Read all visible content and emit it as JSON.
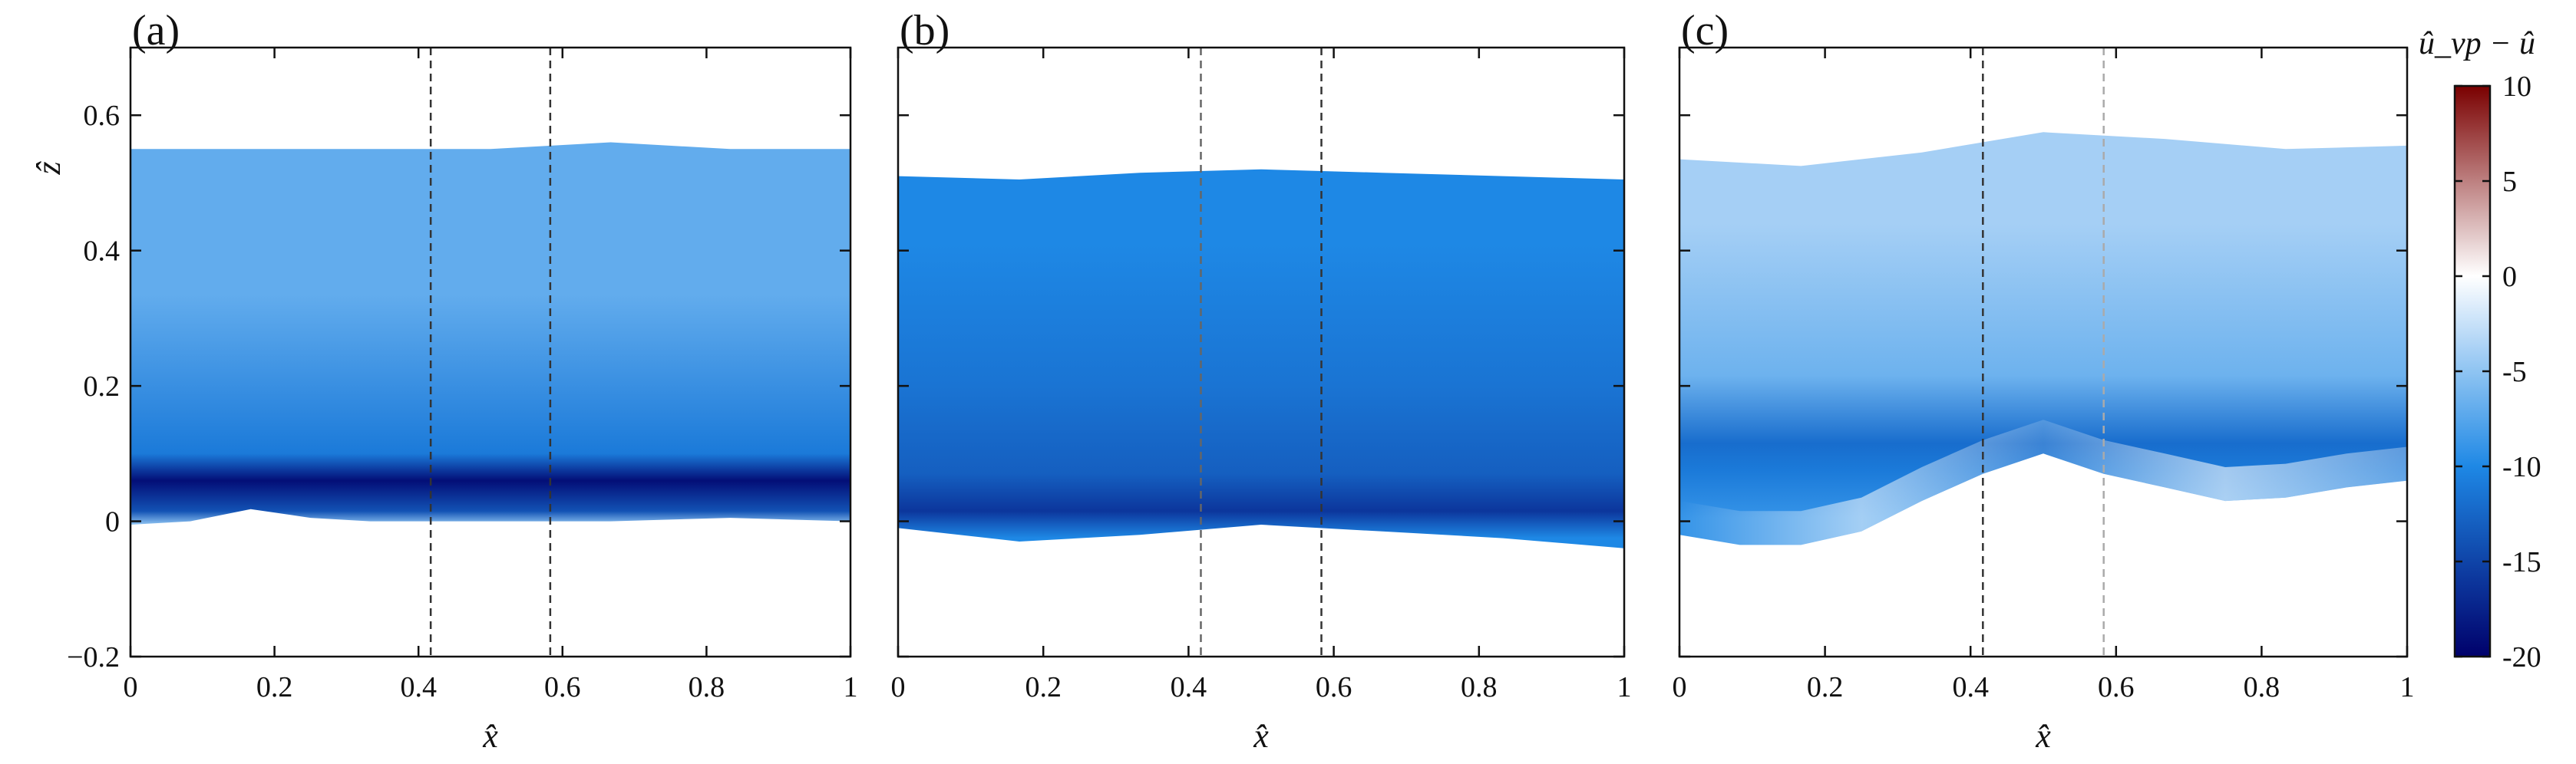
{
  "chart_data": {
    "type": "heatmap",
    "xlabel": "x̂",
    "ylabel": "ẑ",
    "xlim": [
      0,
      1
    ],
    "ylim": [
      -0.2,
      0.7
    ],
    "xticks": [
      "0",
      "0.2",
      "0.4",
      "0.6",
      "0.8",
      "1"
    ],
    "yticks": [
      "−0.2",
      "0",
      "0.2",
      "0.4",
      "0.6"
    ],
    "colorbar": {
      "label": "û_vp − û",
      "range": [
        -20,
        10
      ],
      "ticks": [
        "10",
        "5",
        "0",
        "-5",
        "-10",
        "-15",
        "-20"
      ],
      "colors": {
        "min": "#00006b",
        "mid": "#ffffff",
        "max": "#7a0000",
        "blue": "#1e88e5"
      }
    },
    "panels": [
      {
        "label": "(a)",
        "dashed_x": [
          0.417,
          0.583
        ],
        "dashed_colors": [
          "#333333",
          "#333333"
        ],
        "top": [
          [
            0,
            0.55
          ],
          [
            0.167,
            0.55
          ],
          [
            0.333,
            0.55
          ],
          [
            0.5,
            0.55
          ],
          [
            0.667,
            0.56
          ],
          [
            0.833,
            0.55
          ],
          [
            1,
            0.55
          ]
        ],
        "bottom": [
          [
            0,
            -0.005
          ],
          [
            0.083,
            0.0
          ],
          [
            0.167,
            0.018
          ],
          [
            0.25,
            0.005
          ],
          [
            0.333,
            0.0
          ],
          [
            0.5,
            0.0
          ],
          [
            0.667,
            0.0
          ],
          [
            0.833,
            0.005
          ],
          [
            1,
            0.0
          ]
        ],
        "bands": [
          {
            "z": [
              -0.01,
              0.0
            ],
            "value": -5
          },
          {
            "z": [
              0.0,
              0.03
            ],
            "value": -14
          },
          {
            "z": [
              0.03,
              0.09
            ],
            "value": -19
          },
          {
            "z": [
              0.09,
              0.11
            ],
            "value": -11
          },
          {
            "z": [
              0.11,
              0.56
            ],
            "value": -7
          }
        ]
      },
      {
        "label": "(b)",
        "dashed_x": [
          0.417,
          0.583
        ],
        "dashed_colors": [
          "#666666",
          "#333333"
        ],
        "top": [
          [
            0,
            0.51
          ],
          [
            0.167,
            0.505
          ],
          [
            0.333,
            0.515
          ],
          [
            0.5,
            0.52
          ],
          [
            0.667,
            0.515
          ],
          [
            0.833,
            0.51
          ],
          [
            1,
            0.505
          ]
        ],
        "bottom": [
          [
            0,
            -0.01
          ],
          [
            0.167,
            -0.03
          ],
          [
            0.333,
            -0.02
          ],
          [
            0.5,
            -0.005
          ],
          [
            0.667,
            -0.015
          ],
          [
            0.833,
            -0.025
          ],
          [
            1,
            -0.04
          ]
        ],
        "bands": [
          {
            "z": [
              -0.04,
              -0.01
            ],
            "value": -10
          },
          {
            "z": [
              -0.01,
              0.04
            ],
            "value": -16
          },
          {
            "z": [
              0.04,
              0.1
            ],
            "value": -13
          },
          {
            "z": [
              0.1,
              0.3
            ],
            "value": -11.5
          },
          {
            "z": [
              0.3,
              0.52
            ],
            "value": -10
          }
        ]
      },
      {
        "label": "(c)",
        "dashed_x": [
          0.417,
          0.583
        ],
        "dashed_colors": [
          "#333333",
          "#aaaaaa"
        ],
        "top": [
          [
            0,
            0.535
          ],
          [
            0.167,
            0.525
          ],
          [
            0.333,
            0.545
          ],
          [
            0.5,
            0.575
          ],
          [
            0.667,
            0.565
          ],
          [
            0.833,
            0.55
          ],
          [
            1,
            0.555
          ]
        ],
        "bottom": [
          [
            0,
            -0.02
          ],
          [
            0.083,
            -0.035
          ],
          [
            0.167,
            -0.035
          ],
          [
            0.25,
            -0.015
          ],
          [
            0.333,
            0.03
          ],
          [
            0.417,
            0.07
          ],
          [
            0.5,
            0.1
          ],
          [
            0.583,
            0.07
          ],
          [
            0.667,
            0.05
          ],
          [
            0.75,
            0.03
          ],
          [
            0.833,
            0.035
          ],
          [
            0.917,
            0.05
          ],
          [
            1,
            0.06
          ]
        ],
        "bands": [
          {
            "z": [
              -0.04,
              0.05
            ],
            "value": -9
          },
          {
            "z": [
              0.05,
              0.1
            ],
            "value": -11
          },
          {
            "z": [
              0.1,
              0.13
            ],
            "value": -12
          },
          {
            "z": [
              0.13,
              0.3
            ],
            "value": -6.5
          },
          {
            "z": [
              0.3,
              0.58
            ],
            "value": -4
          }
        ]
      }
    ]
  }
}
